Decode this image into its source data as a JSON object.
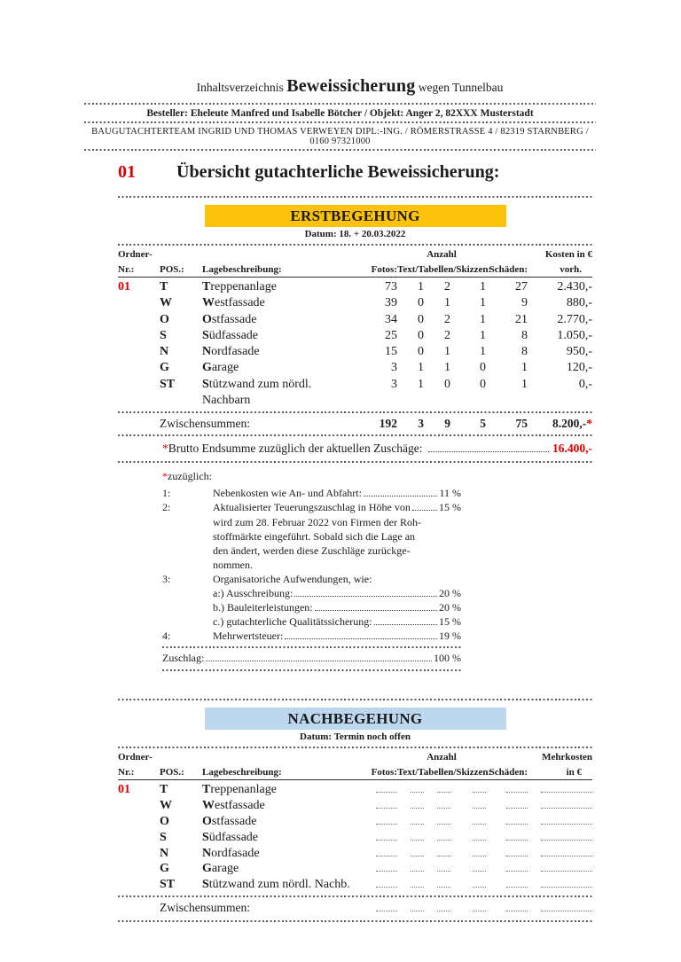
{
  "header": {
    "line1_prefix": "Inhaltsverzeichnis",
    "line1_main": "Beweissicherung",
    "line1_suffix": "wegen Tunnelbau",
    "besteller": "Besteller:  Eheleute Manfred und Isabelle Bötcher  / Objekt: Anger 2, 82XXX Musterstadt",
    "team": "BAUGUTACHTERTEAM INGRID UND THOMAS VERWEYEN DIPL:-ING. / RÖMERSTRASSE 4 /  82319 STARNBERG / 0160  97321000"
  },
  "title": {
    "number": "01",
    "text": "Übersicht gutachterliche Beweissicherung:"
  },
  "colors": {
    "accent_red": "#e10000",
    "banner_yellow": "#fdc30b",
    "banner_blue": "#bdd7ee"
  },
  "erstbegehung": {
    "banner": "ERSTBEGEHUNG",
    "datum": "Datum: 18. + 20.03.2022",
    "headers": {
      "ordner": "Ordner-",
      "nr": "Nr.:",
      "pos": "POS.:",
      "lage": "Lagebeschreibung:",
      "anzahl": "Anzahl",
      "fotos": "Fotos:",
      "tts": "Text/Tabellen/Skizzen:",
      "schaeden": "Schäden:",
      "kosten1": "Kosten  in €",
      "kosten2": "vorh."
    },
    "rows": [
      {
        "nr": "01",
        "pos": "T",
        "lead": "T",
        "rest": "reppenanlage",
        "fotos": "73",
        "text": "1",
        "tab": "2",
        "skiz": "1",
        "schaeden": "27",
        "kosten": "2.430,-"
      },
      {
        "nr": "",
        "pos": "W",
        "lead": "W",
        "rest": "estfassade",
        "fotos": "39",
        "text": "0",
        "tab": "1",
        "skiz": "1",
        "schaeden": "9",
        "kosten": "880,-"
      },
      {
        "nr": "",
        "pos": "O",
        "lead": "O",
        "rest": "stfassade",
        "fotos": "34",
        "text": "0",
        "tab": "2",
        "skiz": "1",
        "schaeden": "21",
        "kosten": "2.770,-"
      },
      {
        "nr": "",
        "pos": "S",
        "lead": "S",
        "rest": "üdfassade",
        "fotos": "25",
        "text": "0",
        "tab": "2",
        "skiz": "1",
        "schaeden": "8",
        "kosten": "1.050,-"
      },
      {
        "nr": "",
        "pos": "N",
        "lead": "N",
        "rest": "ordfasade",
        "fotos": "15",
        "text": "0",
        "tab": "1",
        "skiz": "1",
        "schaeden": "8",
        "kosten": "950,-"
      },
      {
        "nr": "",
        "pos": "G",
        "lead": "G",
        "rest": "arage",
        "fotos": "3",
        "text": "1",
        "tab": "1",
        "skiz": "0",
        "schaeden": "1",
        "kosten": "120,-"
      },
      {
        "nr": "",
        "pos": "ST",
        "lead": "S",
        "rest": "tützwand zum nördl. Nachbarn",
        "fotos": "3",
        "text": "1",
        "tab": "0",
        "skiz": "0",
        "schaeden": "1",
        "kosten": "0,-"
      }
    ],
    "zwischensummen": {
      "label": "Zwischensummen:",
      "fotos": "192",
      "text": "3",
      "tab": "9",
      "skiz": "5",
      "schaeden": "75",
      "kosten": "8.200,-",
      "star": "*"
    },
    "brutto": {
      "star": "*",
      "label": "Brutto Endsumme zuzüglich der aktuellen Zuschäge:",
      "value": "16.400,-"
    }
  },
  "zuschlaege": {
    "star": "*",
    "title": "zuzüglich:",
    "lines": [
      {
        "num": "1:",
        "text": "Nebenkosten wie An- und Abfahrt:",
        "pct": "11 %"
      },
      {
        "num": "2:",
        "text": "Aktualisierter Teuerungszuschlag in Höhe von",
        "pct": "15 %"
      },
      {
        "num": "",
        "text": "wird zum 28. Februar 2022 von Firmen der Roh-",
        "pct": ""
      },
      {
        "num": "",
        "text": "stoffmärkte eingeführt. Sobald sich die Lage an",
        "pct": ""
      },
      {
        "num": "",
        "text": "den ändert, werden diese Zuschläge zurückge-",
        "pct": ""
      },
      {
        "num": "",
        "text": "nommen.",
        "pct": ""
      },
      {
        "num": "3:",
        "text": "Organisatoriche Aufwendungen, wie:",
        "pct": ""
      },
      {
        "num": "",
        "text": "a:) Ausschreibung:",
        "pct": "20 %"
      },
      {
        "num": "",
        "text": "b.) Bauleiterleistungen:",
        "pct": "20 %"
      },
      {
        "num": "",
        "text": "c.) gutachterliche Qualitätssicherung:",
        "pct": "15 %"
      },
      {
        "num": "4:",
        "text": "Mehrwertsteuer:",
        "pct": "19 %"
      }
    ],
    "total": {
      "label": "Zuschlag:",
      "pct": "100 %"
    }
  },
  "nachbegehung": {
    "banner": "NACHBEGEHUNG",
    "datum": "Datum: Termin noch offen",
    "headers": {
      "ordner": "Ordner-",
      "nr": "Nr.:",
      "pos": "POS.:",
      "lage": "Lagebeschreibung:",
      "anzahl": "Anzahl",
      "fotos": "Fotos:",
      "tts": "Text/Tabellen/Skizzen:",
      "schaeden": "Schäden:",
      "mehr1": "Mehrkosten",
      "mehr2": "in €"
    },
    "rows": [
      {
        "nr": "01",
        "pos": "T",
        "lead": "T",
        "rest": "reppenanlage"
      },
      {
        "nr": "",
        "pos": "W",
        "lead": "W",
        "rest": "estfassade"
      },
      {
        "nr": "",
        "pos": "O",
        "lead": "O",
        "rest": "stfassade"
      },
      {
        "nr": "",
        "pos": "S",
        "lead": "S",
        "rest": "üdfassade"
      },
      {
        "nr": "",
        "pos": "N",
        "lead": "N",
        "rest": "ordfasade"
      },
      {
        "nr": "",
        "pos": "G",
        "lead": "G",
        "rest": "arage"
      },
      {
        "nr": "",
        "pos": "ST",
        "lead": "S",
        "rest": "tützwand zum nördl. Nachb."
      }
    ],
    "zwischensummen": {
      "label": "Zwischensummen:"
    }
  }
}
